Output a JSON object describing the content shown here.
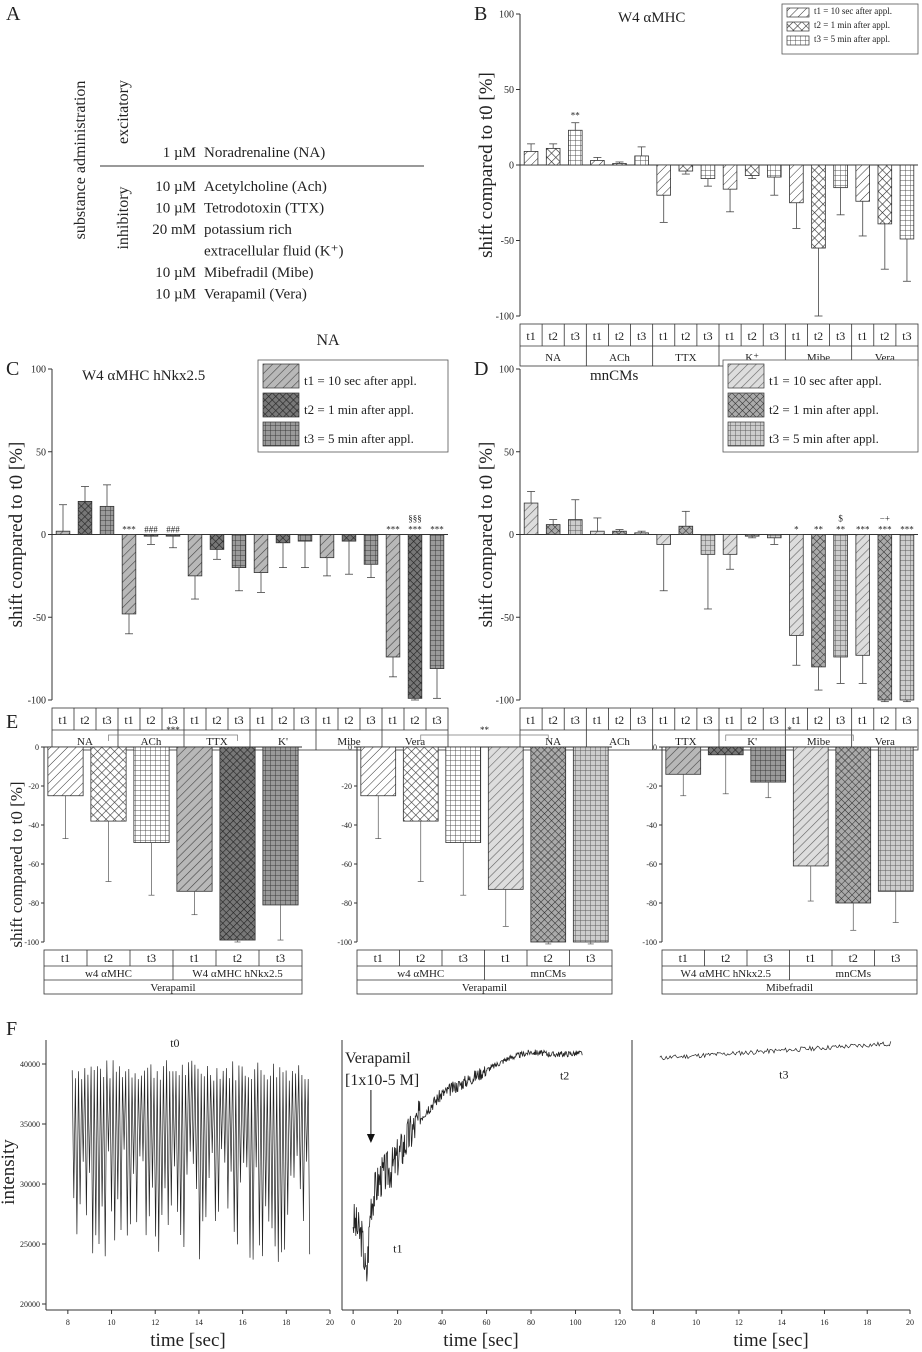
{
  "panels": {
    "A": "A",
    "B": "B",
    "C": "C",
    "D": "D",
    "E": "E",
    "F": "F"
  },
  "panel_a": {
    "vertical_label": "substance administration",
    "excitatory_label": "excitatory",
    "inhibitory_label": "inhibitory",
    "excitatory_items": [
      {
        "dose": "1 µM",
        "name": "Noradrenaline (NA)"
      }
    ],
    "inhibitory_items": [
      {
        "dose": "10 µM",
        "name": "Acetylcholine (Ach)"
      },
      {
        "dose": "10 µM",
        "name": "Tetrodotoxin (TTX)"
      },
      {
        "dose": "20 mM",
        "name": "potassium rich"
      },
      {
        "dose": "",
        "name": "extracellular fluid (K⁺)"
      },
      {
        "dose": "10 µM",
        "name": "Mibefradil (Mibe)"
      },
      {
        "dose": "10 µM",
        "name": "Verapamil (Vera)"
      }
    ],
    "footer": "NA"
  },
  "chart_data": [
    {
      "id": "B",
      "type": "bar",
      "title": "W4 αMHC",
      "ylabel": "shift compared to t0 [%]",
      "ylim": [
        -100,
        100
      ],
      "yticks": [
        100,
        50,
        0,
        -50,
        -100
      ],
      "groups": [
        "NA",
        "ACh",
        "TTX",
        "K⁺",
        "Mibe",
        "Vera"
      ],
      "subcategories": [
        "t1",
        "t2",
        "t3"
      ],
      "legend": [
        "t1 = 10 sec after appl.",
        "t2 = 1 min after appl.",
        "t3 = 5 min after appl."
      ],
      "legend_position": "top-right",
      "series": [
        {
          "name": "t1",
          "values": [
            9,
            3,
            -20,
            -16,
            -25,
            -24
          ],
          "errors": [
            5,
            2,
            18,
            15,
            17,
            23
          ]
        },
        {
          "name": "t2",
          "values": [
            11,
            1,
            -4,
            -7,
            -55,
            -39
          ],
          "errors": [
            3,
            1,
            2,
            2,
            45,
            30
          ]
        },
        {
          "name": "t3",
          "values": [
            23,
            6,
            -9,
            -8,
            -15,
            -49
          ],
          "errors": [
            5,
            6,
            5,
            12,
            18,
            28
          ]
        }
      ],
      "annotations": [
        {
          "group": "NA",
          "sub": "t3",
          "text": "**"
        }
      ]
    },
    {
      "id": "C",
      "type": "bar",
      "title": "W4 αMHC hNkx2.5",
      "ylabel": "shift compared to t0 [%]",
      "ylim": [
        -100,
        100
      ],
      "yticks": [
        100,
        50,
        0,
        -50,
        -100
      ],
      "groups": [
        "NA",
        "ACh",
        "TTX",
        "K'",
        "Mibe",
        "Vera"
      ],
      "subcategories": [
        "t1",
        "t2",
        "t3"
      ],
      "legend": [
        "t1 = 10 sec after appl.",
        "t2 = 1 min after appl.",
        "t3 = 5 min after appl."
      ],
      "legend_position": "top-right",
      "series": [
        {
          "name": "t1",
          "values": [
            2,
            -48,
            -25,
            -23,
            -14,
            -74
          ],
          "errors": [
            16,
            12,
            14,
            12,
            11,
            12
          ]
        },
        {
          "name": "t2",
          "values": [
            20,
            -1,
            -9,
            -5,
            -4,
            -99
          ],
          "errors": [
            9,
            5,
            6,
            15,
            20,
            1
          ]
        },
        {
          "name": "t3",
          "values": [
            17,
            -1,
            -20,
            -4,
            -18,
            -81
          ],
          "errors": [
            13,
            7,
            14,
            16,
            8,
            18
          ]
        }
      ],
      "annotations": [
        {
          "group": "ACh",
          "sub": "t1",
          "text": "***"
        },
        {
          "group": "ACh",
          "sub": "t2",
          "text": "###"
        },
        {
          "group": "ACh",
          "sub": "t3",
          "text": "###"
        },
        {
          "group": "Vera",
          "sub": "t1",
          "text": "***"
        },
        {
          "group": "Vera",
          "sub": "t2",
          "text": "***"
        },
        {
          "group": "Vera",
          "sub": "t3",
          "text": "***"
        },
        {
          "group": "Vera",
          "sub": "t2",
          "text": "§§§"
        }
      ]
    },
    {
      "id": "D",
      "type": "bar",
      "title": "mnCMs",
      "ylabel": "shift compared to t0 [%]",
      "ylim": [
        -100,
        100
      ],
      "yticks": [
        100,
        50,
        0,
        -50,
        -100
      ],
      "groups": [
        "NA",
        "ACh",
        "TTX",
        "K'",
        "Mibe",
        "Vera"
      ],
      "subcategories": [
        "t1",
        "t2",
        "t3"
      ],
      "legend": [
        "t1 = 10 sec after appl.",
        "t2 = 1 min after appl.",
        "t3 = 5 min after appl."
      ],
      "legend_position": "top-right",
      "series": [
        {
          "name": "t1",
          "values": [
            19,
            2,
            -6,
            -12,
            -61,
            -73
          ],
          "errors": [
            7,
            8,
            28,
            9,
            18,
            17
          ]
        },
        {
          "name": "t2",
          "values": [
            6,
            2,
            5,
            -1,
            -80,
            -100
          ],
          "errors": [
            3,
            1,
            9,
            1,
            14,
            1
          ]
        },
        {
          "name": "t3",
          "values": [
            9,
            1,
            -12,
            -2,
            -74,
            -100
          ],
          "errors": [
            12,
            1,
            33,
            4,
            16,
            1
          ]
        }
      ],
      "annotations": [
        {
          "group": "Mibe",
          "sub": "t1",
          "text": "*"
        },
        {
          "group": "Mibe",
          "sub": "t2",
          "text": "**"
        },
        {
          "group": "Mibe",
          "sub": "t3",
          "text": "**"
        },
        {
          "group": "Mibe",
          "sub": "t3",
          "text": "$"
        },
        {
          "group": "Vera",
          "sub": "t1",
          "text": "***"
        },
        {
          "group": "Vera",
          "sub": "t2",
          "text": "***"
        },
        {
          "group": "Vera",
          "sub": "t3",
          "text": "***"
        },
        {
          "group": "Vera",
          "sub": "t2",
          "text": "−+"
        }
      ]
    },
    {
      "id": "E1",
      "type": "bar",
      "ylim": [
        -100,
        0
      ],
      "yticks": [
        0,
        -20,
        -40,
        -60,
        -80,
        -100
      ],
      "ylabel": "shift compared to t0 [%]",
      "categories": [
        "t1",
        "t2",
        "t3",
        "t1",
        "t2",
        "t3"
      ],
      "cell_groups": [
        "w4 αMHC",
        "W4 αMHC hNkx2.5"
      ],
      "treatment": "Verapamil",
      "values": [
        -25,
        -38,
        -49,
        -74,
        -99,
        -81
      ],
      "errors": [
        22,
        31,
        27,
        12,
        1,
        18
      ],
      "significance": {
        "label": "***"
      }
    },
    {
      "id": "E2",
      "type": "bar",
      "ylim": [
        -100,
        0
      ],
      "yticks": [
        0,
        -20,
        -40,
        -60,
        -80,
        -100
      ],
      "categories": [
        "t1",
        "t2",
        "t3",
        "t1",
        "t2",
        "t3"
      ],
      "cell_groups": [
        "w4 αMHC",
        "mnCMs"
      ],
      "treatment": "Verapamil",
      "values": [
        -25,
        -38,
        -49,
        -73,
        -100,
        -100
      ],
      "errors": [
        22,
        31,
        27,
        19,
        1,
        1
      ],
      "significance": {
        "label": "**"
      }
    },
    {
      "id": "E3",
      "type": "bar",
      "ylim": [
        -100,
        0
      ],
      "yticks": [
        0,
        -20,
        -40,
        -60,
        -80,
        -100
      ],
      "categories": [
        "t1",
        "t2",
        "t3",
        "t1",
        "t2",
        "t3"
      ],
      "cell_groups": [
        "W4 αMHC hNkx2.5",
        "mnCMs"
      ],
      "treatment": "Mibefradil",
      "values": [
        -14,
        -4,
        -18,
        -61,
        -80,
        -74
      ],
      "errors": [
        11,
        20,
        8,
        18,
        14,
        16
      ],
      "significance": {
        "label": "*"
      }
    },
    {
      "id": "F1",
      "type": "line",
      "xlabel": "time [sec]",
      "ylabel": "intensity",
      "xlim": [
        7,
        20
      ],
      "ylim": [
        19500,
        42000
      ],
      "xticks": [
        8,
        10,
        12,
        14,
        16,
        18,
        20
      ],
      "yticks": [
        20000,
        25000,
        30000,
        35000,
        40000
      ],
      "series_label": "t0",
      "trace": {
        "kind": "oscillating",
        "x_start": 8.2,
        "x_end": 19,
        "base": 39500,
        "trough_min": 23500,
        "trough_max": 33000,
        "beats": 75
      }
    },
    {
      "id": "F2",
      "type": "line",
      "xlabel": "time [sec]",
      "xlim": [
        -5,
        120
      ],
      "ylim": [
        19500,
        42000
      ],
      "xticks": [
        0,
        20,
        40,
        60,
        80,
        100,
        120
      ],
      "annotations": [
        {
          "text": "Verapamil"
        },
        {
          "text": "[1x10-5 M]"
        },
        {
          "text": "t1"
        },
        {
          "text": "t2"
        }
      ],
      "trace": {
        "kind": "rising",
        "points": [
          [
            0,
            27000
          ],
          [
            4,
            25500
          ],
          [
            6,
            22000
          ],
          [
            8,
            28500
          ],
          [
            12,
            30500
          ],
          [
            18,
            31500
          ],
          [
            25,
            34000
          ],
          [
            32,
            36000
          ],
          [
            40,
            37500
          ],
          [
            50,
            38500
          ],
          [
            60,
            39500
          ],
          [
            70,
            40500
          ],
          [
            80,
            41000
          ],
          [
            90,
            40800
          ],
          [
            103,
            40900
          ]
        ]
      }
    },
    {
      "id": "F3",
      "type": "line",
      "xlabel": "time [sec]",
      "xlim": [
        7,
        20
      ],
      "ylim": [
        19500,
        42000
      ],
      "xticks": [
        8,
        10,
        12,
        14,
        16,
        18,
        20
      ],
      "series_label": "t3",
      "trace": {
        "kind": "flat",
        "x_start": 8.3,
        "x_end": 19.1,
        "y_start": 40500,
        "y_end": 41700,
        "noise": 400
      }
    }
  ]
}
